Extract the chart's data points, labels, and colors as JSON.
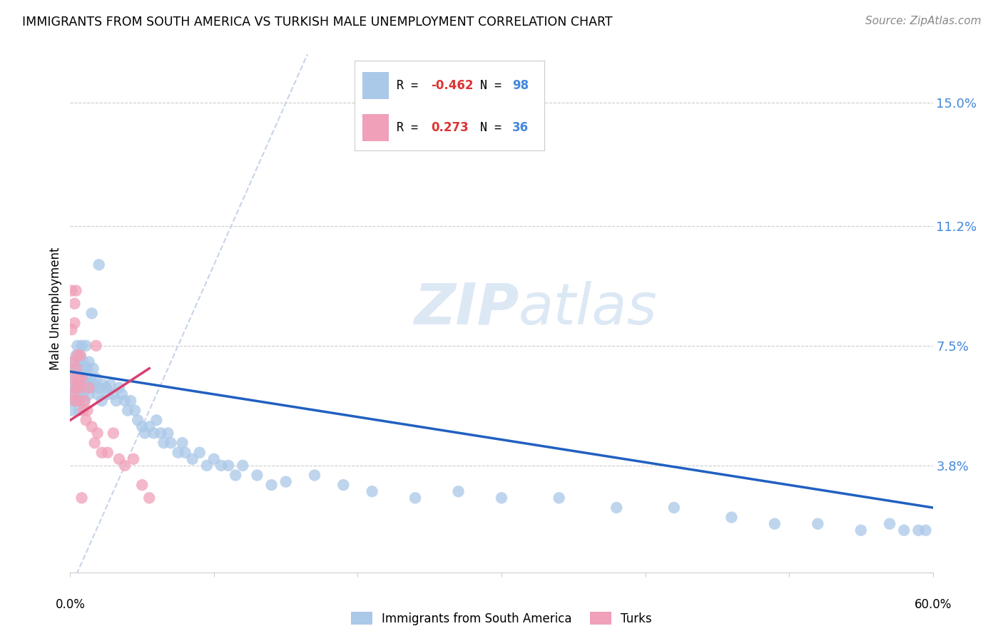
{
  "title": "IMMIGRANTS FROM SOUTH AMERICA VS TURKISH MALE UNEMPLOYMENT CORRELATION CHART",
  "source": "Source: ZipAtlas.com",
  "ylabel": "Male Unemployment",
  "yticks": [
    0.038,
    0.075,
    0.112,
    0.15
  ],
  "ytick_labels": [
    "3.8%",
    "7.5%",
    "11.2%",
    "15.0%"
  ],
  "xlim": [
    0.0,
    0.6
  ],
  "ylim": [
    0.005,
    0.168
  ],
  "legend_blue_r": "-0.462",
  "legend_blue_n": "98",
  "legend_pink_r": "0.273",
  "legend_pink_n": "36",
  "legend_label_blue": "Immigrants from South America",
  "legend_label_pink": "Turks",
  "blue_color": "#aac8e8",
  "pink_color": "#f0a0b8",
  "blue_line_color": "#2060c0",
  "pink_line_color": "#d84070",
  "diagonal_color": "#c8d4e8",
  "watermark_color": "#dde8f5",
  "blue_scatter_x": [
    0.001,
    0.001,
    0.002,
    0.002,
    0.003,
    0.003,
    0.003,
    0.004,
    0.004,
    0.004,
    0.005,
    0.005,
    0.005,
    0.006,
    0.006,
    0.006,
    0.006,
    0.007,
    0.007,
    0.007,
    0.008,
    0.008,
    0.008,
    0.009,
    0.009,
    0.009,
    0.01,
    0.01,
    0.01,
    0.011,
    0.011,
    0.012,
    0.012,
    0.013,
    0.013,
    0.014,
    0.015,
    0.016,
    0.017,
    0.018,
    0.019,
    0.02,
    0.022,
    0.023,
    0.025,
    0.026,
    0.028,
    0.03,
    0.032,
    0.034,
    0.036,
    0.038,
    0.04,
    0.042,
    0.045,
    0.047,
    0.05,
    0.052,
    0.055,
    0.058,
    0.06,
    0.063,
    0.065,
    0.068,
    0.07,
    0.075,
    0.078,
    0.08,
    0.085,
    0.09,
    0.095,
    0.1,
    0.105,
    0.11,
    0.115,
    0.12,
    0.13,
    0.14,
    0.15,
    0.17,
    0.19,
    0.21,
    0.24,
    0.27,
    0.3,
    0.34,
    0.38,
    0.42,
    0.46,
    0.49,
    0.52,
    0.55,
    0.57,
    0.58,
    0.59,
    0.595,
    0.02,
    0.015
  ],
  "blue_scatter_y": [
    0.062,
    0.055,
    0.068,
    0.058,
    0.065,
    0.07,
    0.06,
    0.072,
    0.063,
    0.058,
    0.075,
    0.065,
    0.068,
    0.07,
    0.063,
    0.058,
    0.055,
    0.072,
    0.065,
    0.06,
    0.068,
    0.075,
    0.062,
    0.065,
    0.07,
    0.06,
    0.063,
    0.068,
    0.058,
    0.075,
    0.065,
    0.068,
    0.063,
    0.07,
    0.06,
    0.065,
    0.062,
    0.068,
    0.063,
    0.065,
    0.06,
    0.062,
    0.058,
    0.063,
    0.062,
    0.06,
    0.063,
    0.06,
    0.058,
    0.062,
    0.06,
    0.058,
    0.055,
    0.058,
    0.055,
    0.052,
    0.05,
    0.048,
    0.05,
    0.048,
    0.052,
    0.048,
    0.045,
    0.048,
    0.045,
    0.042,
    0.045,
    0.042,
    0.04,
    0.042,
    0.038,
    0.04,
    0.038,
    0.038,
    0.035,
    0.038,
    0.035,
    0.032,
    0.033,
    0.035,
    0.032,
    0.03,
    0.028,
    0.03,
    0.028,
    0.028,
    0.025,
    0.025,
    0.022,
    0.02,
    0.02,
    0.018,
    0.02,
    0.018,
    0.018,
    0.018,
    0.1,
    0.085
  ],
  "pink_scatter_x": [
    0.001,
    0.001,
    0.001,
    0.002,
    0.002,
    0.003,
    0.003,
    0.003,
    0.004,
    0.004,
    0.004,
    0.005,
    0.005,
    0.006,
    0.006,
    0.007,
    0.007,
    0.008,
    0.009,
    0.01,
    0.011,
    0.012,
    0.013,
    0.015,
    0.017,
    0.019,
    0.022,
    0.026,
    0.03,
    0.034,
    0.038,
    0.044,
    0.05,
    0.055,
    0.018,
    0.008
  ],
  "pink_scatter_y": [
    0.065,
    0.08,
    0.092,
    0.06,
    0.07,
    0.082,
    0.088,
    0.058,
    0.062,
    0.068,
    0.092,
    0.063,
    0.072,
    0.065,
    0.058,
    0.072,
    0.062,
    0.065,
    0.055,
    0.058,
    0.052,
    0.055,
    0.062,
    0.05,
    0.045,
    0.048,
    0.042,
    0.042,
    0.048,
    0.04,
    0.038,
    0.04,
    0.032,
    0.028,
    0.075,
    0.028
  ],
  "blue_line_x0": 0.0,
  "blue_line_x1": 0.6,
  "blue_line_y0": 0.067,
  "blue_line_y1": 0.025,
  "pink_line_x0": 0.0,
  "pink_line_x1": 0.055,
  "pink_line_y0": 0.052,
  "pink_line_y1": 0.068
}
